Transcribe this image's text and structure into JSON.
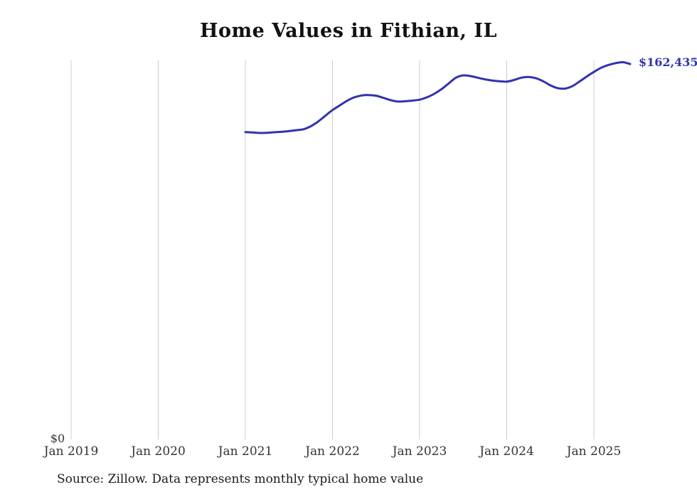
{
  "chart_data": {
    "type": "line",
    "title": "Home Values in Fithian, IL",
    "source": "Source: Zillow. Data represents monthly typical home value",
    "end_label": "$162,435",
    "y_zero_label": "$0",
    "x_ticks": [
      "Jan 2019",
      "Jan 2020",
      "Jan 2021",
      "Jan 2022",
      "Jan 2023",
      "Jan 2024",
      "Jan 2025"
    ],
    "x": [
      "2021-01",
      "2021-02",
      "2021-03",
      "2021-04",
      "2021-05",
      "2021-06",
      "2021-07",
      "2021-08",
      "2021-09",
      "2021-10",
      "2021-11",
      "2021-12",
      "2022-01",
      "2022-02",
      "2022-03",
      "2022-04",
      "2022-05",
      "2022-06",
      "2022-07",
      "2022-08",
      "2022-09",
      "2022-10",
      "2022-11",
      "2022-12",
      "2023-01",
      "2023-02",
      "2023-03",
      "2023-04",
      "2023-05",
      "2023-06",
      "2023-07",
      "2023-08",
      "2023-09",
      "2023-10",
      "2023-11",
      "2023-12",
      "2024-01",
      "2024-02",
      "2024-03",
      "2024-04",
      "2024-05",
      "2024-06",
      "2024-07",
      "2024-08",
      "2024-09",
      "2024-10",
      "2024-11",
      "2024-12",
      "2025-01",
      "2025-02",
      "2025-03",
      "2025-04",
      "2025-05",
      "2025-06"
    ],
    "values": [
      133000,
      132800,
      132600,
      132700,
      132900,
      133100,
      133400,
      133800,
      134200,
      135500,
      137500,
      140000,
      142500,
      144500,
      146500,
      148000,
      148800,
      149000,
      148700,
      147800,
      146800,
      146200,
      146300,
      146600,
      147000,
      148000,
      149500,
      151500,
      154000,
      156500,
      157500,
      157200,
      156500,
      155800,
      155300,
      155000,
      154800,
      155500,
      156500,
      156800,
      156300,
      155000,
      153200,
      152000,
      151800,
      152800,
      154800,
      157000,
      159000,
      160800,
      162000,
      162800,
      163200,
      162435
    ],
    "ylabel": "",
    "xlabel": "",
    "ylim": [
      0,
      166000
    ],
    "grid": "vertical-only",
    "legend": "none",
    "line_color": "#3232b0",
    "grid_color": "#cccccc",
    "final_value": 162435,
    "x_start_year": 2019,
    "data_start_month_index": 24
  }
}
